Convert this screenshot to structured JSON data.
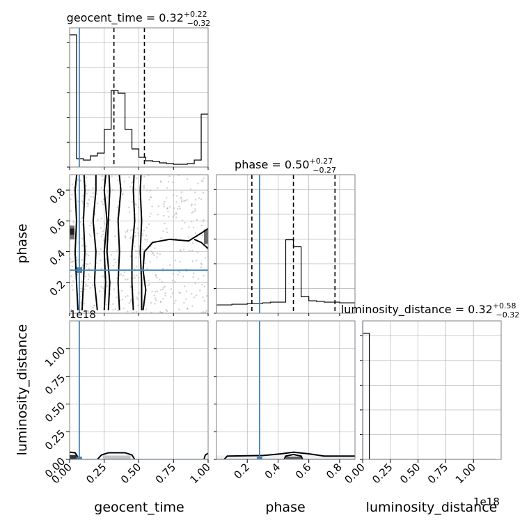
{
  "chart_data": {
    "type": "corner",
    "parameters": [
      "geocent_time",
      "phase",
      "luminosity_distance"
    ],
    "axis_labels": {
      "geocent_time": "geocent_time",
      "phase": "phase",
      "luminosity_distance": "luminosity_distance"
    },
    "truths": {
      "geocent_time": 0.07,
      "phase": 0.28,
      "luminosity_distance": 0.0
    },
    "ranges": {
      "geocent_time": [
        0,
        1
      ],
      "phase": [
        0.0,
        0.9
      ],
      "luminosity_distance": [
        0,
        1.25
      ]
    },
    "ticks": {
      "geocent_time": [
        {
          "v": 0.0,
          "label": "0.00"
        },
        {
          "v": 0.25,
          "label": "0.25"
        },
        {
          "v": 0.5,
          "label": "0.50"
        },
        {
          "v": 0.75,
          "label": "0.75"
        },
        {
          "v": 1.0,
          "label": "1.00"
        }
      ],
      "phase": [
        {
          "v": 0.2,
          "label": "0.2"
        },
        {
          "v": 0.4,
          "label": "0.4"
        },
        {
          "v": 0.6,
          "label": "0.6"
        },
        {
          "v": 0.8,
          "label": "0.8"
        }
      ],
      "luminosity_distance": [
        {
          "v": 0.0,
          "label": "0.00"
        },
        {
          "v": 0.25,
          "label": "0.25"
        },
        {
          "v": 0.5,
          "label": "0.50"
        },
        {
          "v": 0.75,
          "label": "0.75"
        },
        {
          "v": 1.0,
          "label": "1.00"
        }
      ]
    },
    "offset_label": "1e18",
    "titles": {
      "geocent_time": {
        "name": "geocent_time",
        "median": "0.32",
        "plus": "+0.22",
        "minus": "−0.32"
      },
      "phase": {
        "name": "phase",
        "median": "0.50",
        "plus": "+0.27",
        "minus": "−0.27"
      },
      "luminosity_distance": {
        "name": "luminosity_distance",
        "median": "0.32",
        "plus": "+0.58",
        "minus": "−0.32"
      }
    },
    "quantiles": {
      "geocent_time": [
        0.32,
        0.54
      ],
      "phase": [
        0.23,
        0.5,
        0.77
      ]
    },
    "histograms": {
      "geocent_time": {
        "edges": [
          0.0,
          0.05,
          0.1,
          0.15,
          0.2,
          0.25,
          0.3,
          0.35,
          0.4,
          0.45,
          0.5,
          0.55,
          0.6,
          0.65,
          0.7,
          0.75,
          0.8,
          0.85,
          0.9,
          0.95,
          1.0
        ],
        "counts": [
          0.95,
          0.06,
          0.05,
          0.08,
          0.1,
          0.27,
          0.55,
          0.53,
          0.27,
          0.13,
          0.07,
          0.045,
          0.04,
          0.03,
          0.025,
          0.02,
          0.02,
          0.025,
          0.05,
          0.38
        ]
      },
      "phase": {
        "edges": [
          0.0,
          0.05,
          0.1,
          0.15,
          0.2,
          0.25,
          0.3,
          0.35,
          0.4,
          0.45,
          0.5,
          0.55,
          0.6,
          0.65,
          0.7,
          0.75,
          0.8,
          0.85,
          0.9
        ],
        "counts": [
          0.06,
          0.06,
          0.065,
          0.065,
          0.07,
          0.07,
          0.075,
          0.08,
          0.08,
          0.53,
          0.48,
          0.12,
          0.09,
          0.085,
          0.08,
          0.08,
          0.075,
          0.075
        ]
      },
      "luminosity_distance": {
        "edges": [
          0.0,
          0.06,
          0.12,
          0.18,
          0.24,
          0.3,
          0.36,
          0.42,
          0.48,
          0.54,
          0.6,
          0.66,
          0.72,
          0.78,
          0.84,
          0.9,
          0.96,
          1.02,
          1.08,
          1.14,
          1.2
        ],
        "counts": [
          0.91,
          0,
          0,
          0,
          0,
          0,
          0,
          0,
          0,
          0,
          0,
          0,
          0,
          0,
          0,
          0,
          0,
          0,
          0,
          0
        ]
      }
    },
    "panel_gt_phase": {
      "contours": [
        [
          [
            0.06,
            0.02
          ],
          [
            0.05,
            0.2
          ],
          [
            0.04,
            0.4
          ],
          [
            0.05,
            0.6
          ],
          [
            0.04,
            0.8
          ],
          [
            0.06,
            0.98
          ]
        ],
        [
          [
            0.09,
            0.02
          ],
          [
            0.1,
            0.2
          ],
          [
            0.11,
            0.4
          ],
          [
            0.1,
            0.6
          ],
          [
            0.11,
            0.8
          ],
          [
            0.1,
            0.98
          ]
        ],
        [
          [
            0.2,
            0.02
          ],
          [
            0.18,
            0.2
          ],
          [
            0.19,
            0.4
          ],
          [
            0.17,
            0.6
          ],
          [
            0.19,
            0.8
          ],
          [
            0.19,
            0.98
          ]
        ],
        [
          [
            0.25,
            0.02
          ],
          [
            0.26,
            0.2
          ],
          [
            0.25,
            0.4
          ],
          [
            0.27,
            0.6
          ],
          [
            0.25,
            0.8
          ],
          [
            0.27,
            0.98
          ]
        ],
        [
          [
            0.28,
            0.02
          ],
          [
            0.29,
            0.2
          ],
          [
            0.27,
            0.4
          ],
          [
            0.28,
            0.6
          ],
          [
            0.29,
            0.8
          ],
          [
            0.28,
            0.98
          ]
        ],
        [
          [
            0.36,
            0.02
          ],
          [
            0.35,
            0.2
          ],
          [
            0.36,
            0.4
          ],
          [
            0.35,
            0.6
          ],
          [
            0.37,
            0.8
          ],
          [
            0.35,
            0.98
          ]
        ],
        [
          [
            0.46,
            0.02
          ],
          [
            0.45,
            0.2
          ],
          [
            0.45,
            0.4
          ],
          [
            0.47,
            0.6
          ],
          [
            0.46,
            0.8
          ],
          [
            0.47,
            0.98
          ]
        ],
        [
          [
            0.52,
            0.02
          ],
          [
            0.52,
            0.2
          ],
          [
            0.51,
            0.4
          ],
          [
            0.52,
            0.6
          ],
          [
            0.51,
            0.8
          ],
          [
            0.52,
            0.98
          ]
        ],
        [
          [
            0.53,
            0.02
          ],
          [
            0.55,
            0.15
          ],
          [
            0.53,
            0.28
          ],
          [
            0.54,
            0.4
          ],
          [
            0.6,
            0.46
          ],
          [
            0.72,
            0.48
          ],
          [
            0.86,
            0.47
          ],
          [
            0.95,
            0.52
          ],
          [
            1.0,
            0.55
          ]
        ],
        [
          [
            1.0,
            0.42
          ],
          [
            0.95,
            0.46
          ],
          [
            0.9,
            0.48
          ]
        ]
      ],
      "blobs": [
        {
          "x": 0.0,
          "y": 0.48,
          "w": 0.035,
          "h": 0.09,
          "shade": "#555555"
        },
        {
          "x": 0.0,
          "y": 0.51,
          "w": 0.035,
          "h": 0.04,
          "shade": "#111111"
        },
        {
          "x": 0.97,
          "y": 0.45,
          "w": 0.03,
          "h": 0.09,
          "shade": "#555555"
        }
      ]
    },
    "panel_gt_ld": {
      "contours": [
        [
          [
            0.0,
            0.065
          ],
          [
            0.04,
            0.06
          ],
          [
            0.06,
            0.02
          ],
          [
            0.06,
            0.0
          ]
        ],
        [
          [
            0.2,
            0.0
          ],
          [
            0.23,
            0.04
          ],
          [
            0.28,
            0.06
          ],
          [
            0.4,
            0.06
          ],
          [
            0.45,
            0.04
          ],
          [
            0.47,
            0.0
          ]
        ],
        [
          [
            1.0,
            0.055
          ],
          [
            0.98,
            0.04
          ],
          [
            0.97,
            0.0
          ]
        ]
      ],
      "blobs": [
        {
          "x": 0.0,
          "y": 0.0,
          "w": 0.05,
          "h": 0.04,
          "shade": "#111111"
        },
        {
          "x": 0.24,
          "y": 0.0,
          "w": 0.2,
          "h": 0.035,
          "shade": "#bbbbbb"
        }
      ]
    },
    "panel_phase_ld": {
      "contours": [
        [
          [
            0.05,
            0.0
          ],
          [
            0.07,
            0.03
          ],
          [
            0.3,
            0.035
          ],
          [
            0.42,
            0.05
          ],
          [
            0.5,
            0.065
          ],
          [
            0.6,
            0.05
          ],
          [
            0.7,
            0.03
          ],
          [
            0.9,
            0.03
          ]
        ],
        [
          [
            0.44,
            0.0
          ],
          [
            0.45,
            0.03
          ],
          [
            0.5,
            0.045
          ],
          [
            0.55,
            0.03
          ],
          [
            0.56,
            0.0
          ]
        ]
      ],
      "blobs": [
        {
          "x": 0.0,
          "y": 0.0,
          "w": 0.9,
          "h": 0.035,
          "shade": "#eeeeee"
        },
        {
          "x": 0.45,
          "y": 0.0,
          "w": 0.1,
          "h": 0.025,
          "shade": "#444444"
        }
      ]
    }
  }
}
